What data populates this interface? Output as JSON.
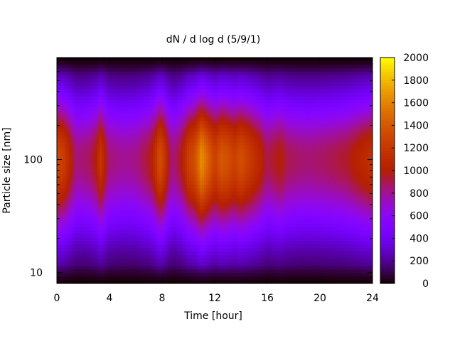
{
  "chart_data": {
    "type": "heatmap",
    "title": "dN / d log d (5/9/1)",
    "xlabel": "Time [hour]",
    "ylabel": "Particle size [nm]",
    "x_ticks": [
      0,
      4,
      8,
      12,
      16,
      20,
      24
    ],
    "y_ticks": [
      10,
      100
    ],
    "y_scale": "log",
    "xlim": [
      0,
      24
    ],
    "ylim": [
      8,
      800
    ],
    "colorbar": {
      "ticks": [
        0,
        200,
        400,
        600,
        800,
        1000,
        1200,
        1400,
        1600,
        1800,
        2000
      ],
      "range": [
        0,
        2000
      ],
      "colormap": "gnuplot-rgbformulae-7-5-15"
    },
    "peak_mode_diameter_nm": 100,
    "time_profile": {
      "hours": [
        0,
        0.5,
        1,
        1.5,
        2,
        2.5,
        3,
        3.3,
        3.6,
        4,
        5,
        6,
        7,
        7.5,
        7.8,
        8.1,
        8.6,
        9,
        9.5,
        10,
        10.5,
        11,
        11.5,
        12,
        12.5,
        13,
        13.5,
        14,
        14.5,
        15,
        15.5,
        16,
        16.5,
        17,
        17.5,
        18,
        19,
        20,
        21,
        22,
        23,
        23.5,
        24
      ],
      "peak_concentration": [
        1300,
        1250,
        1050,
        850,
        850,
        900,
        1000,
        1200,
        1050,
        850,
        800,
        820,
        950,
        1150,
        1350,
        1250,
        900,
        850,
        1000,
        1250,
        1350,
        1650,
        1450,
        1250,
        1400,
        1350,
        1250,
        1350,
        1250,
        1150,
        1050,
        900,
        950,
        1000,
        900,
        880,
        850,
        870,
        900,
        950,
        1050,
        1100,
        1150
      ]
    }
  }
}
